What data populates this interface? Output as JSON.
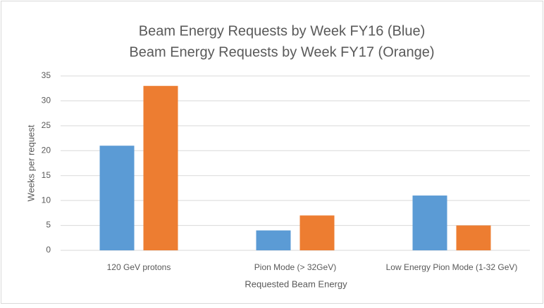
{
  "chart_data": {
    "type": "bar",
    "title": [
      "Beam Energy Requests by Week FY16 (Blue)",
      "Beam Energy Requests by Week FY17 (Orange)"
    ],
    "x_label": "Requested Beam Energy",
    "y_label": "Weeks per request",
    "categories": [
      "120 GeV protons",
      "Pion Mode (> 32GeV)",
      "Low Energy Pion Mode (1-32 GeV)"
    ],
    "series": [
      {
        "color": "#5b9bd5",
        "values": [
          21,
          4,
          11
        ]
      },
      {
        "color": "#ed7d31",
        "values": [
          33,
          7,
          5
        ]
      }
    ],
    "ylim": [
      0,
      35
    ],
    "yticks": [
      0,
      5,
      10,
      15,
      20,
      25,
      30,
      35
    ],
    "grid": true
  }
}
